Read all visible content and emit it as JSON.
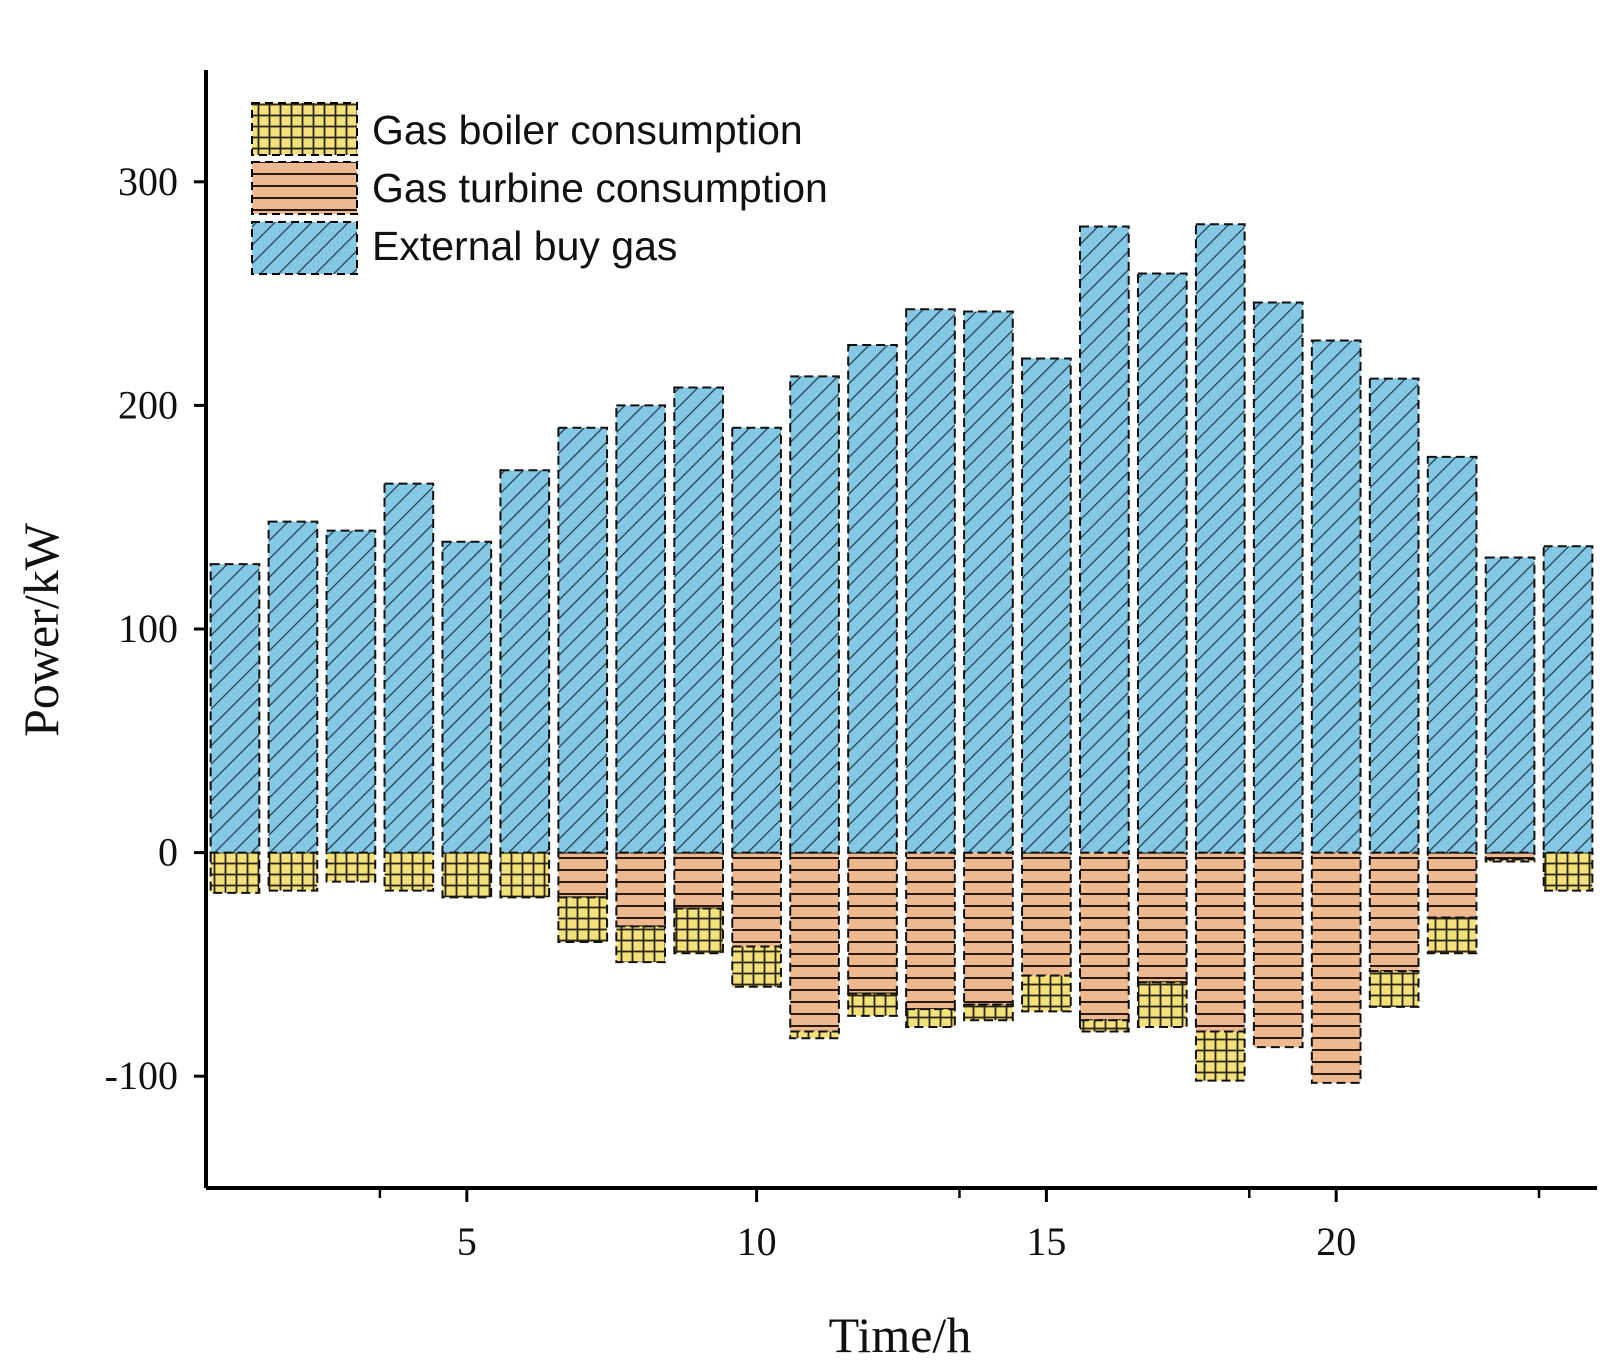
{
  "chart_data": {
    "type": "bar",
    "stacked": true,
    "title": "",
    "xlabel": "Time/h",
    "ylabel": "Power/kW",
    "xlim": [
      0.5,
      24.5
    ],
    "ylim": [
      -150,
      350
    ],
    "x_major_ticks": [
      5,
      10,
      15,
      20
    ],
    "x_minor_ticks": [
      3,
      13,
      18,
      23
    ],
    "y_ticks": [
      -100,
      0,
      100,
      200,
      300
    ],
    "legend_position": "top-left",
    "x": [
      1,
      2,
      3,
      4,
      5,
      6,
      7,
      8,
      9,
      10,
      11,
      12,
      13,
      14,
      15,
      16,
      17,
      18,
      19,
      20,
      21,
      22,
      23,
      24
    ],
    "series": [
      {
        "name": "Gas boiler consumption",
        "color": "#f3e27a",
        "pattern": "grid",
        "values": [
          -18,
          -17,
          -13,
          -17,
          -20,
          -20,
          -20,
          -16,
          -20,
          -18,
          -3,
          -10,
          -8,
          -7,
          -16,
          -5,
          -20,
          -22,
          0,
          0,
          -16,
          -16,
          -1,
          -17
        ]
      },
      {
        "name": "Gas turbine consumption",
        "color": "#efb990",
        "pattern": "horizontal",
        "values": [
          0,
          0,
          0,
          0,
          0,
          0,
          -20,
          -33,
          -25,
          -42,
          -80,
          -63,
          -70,
          -68,
          -55,
          -75,
          -58,
          -80,
          -87,
          -103,
          -53,
          -29,
          -3,
          0
        ]
      },
      {
        "name": "External buy gas",
        "color": "#84c8e4",
        "pattern": "diagonal",
        "values": [
          129,
          148,
          144,
          165,
          139,
          171,
          190,
          200,
          208,
          190,
          213,
          227,
          243,
          242,
          221,
          280,
          259,
          281,
          246,
          229,
          212,
          177,
          132,
          137
        ]
      }
    ]
  }
}
